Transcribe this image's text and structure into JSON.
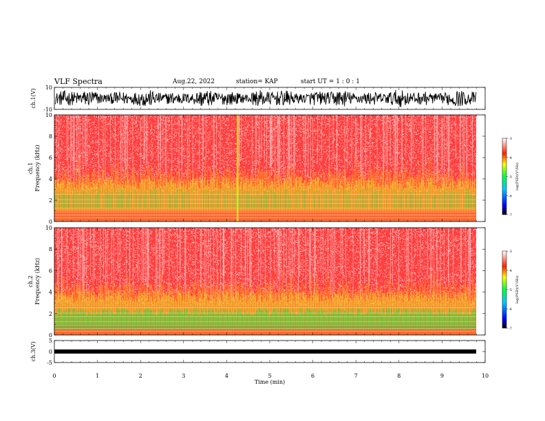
{
  "header": {
    "title": "VLF Spectra",
    "date": "Aug.22, 2022",
    "station": "station= KAP",
    "start": "start UT =  1 : 0  : 1"
  },
  "colors": {
    "spec_bg": "#ff4040",
    "spec_speckle": "#ffd0d0",
    "band_orange": "#ff9a1a",
    "band_yellow": "#e8e62a",
    "band_green": "#30e040",
    "band_cyan": "#30d0c0",
    "trace": "#000000"
  },
  "chart_data": [
    {
      "type": "line",
      "name": "ch1-waveform",
      "ylabel": "ch.1(V)",
      "ylim": [
        -10,
        10
      ],
      "yticks": [
        "10",
        "-10"
      ],
      "x_range": [
        0,
        9.83
      ],
      "approx_amplitude": [
        -8,
        8
      ]
    },
    {
      "type": "heatmap",
      "name": "ch1-spectrogram",
      "ylabel_lines": [
        "ch.1",
        "Frequency (kHz)"
      ],
      "ylim": [
        0,
        10
      ],
      "yticks": [
        "0",
        "2",
        "4",
        "6",
        "8",
        "10"
      ],
      "x_range": [
        0,
        9.83
      ],
      "colorbar": {
        "label": "log(PSD)(V²/Hz)",
        "range": [
          -7,
          -3
        ],
        "ticks": [
          "-3",
          "-4",
          "-5",
          "-6",
          "-7"
        ]
      },
      "features": {
        "strong_band_khz": [
          0.8,
          4.5
        ],
        "event_time_min": 4.25
      }
    },
    {
      "type": "heatmap",
      "name": "ch2-spectrogram",
      "ylabel_lines": [
        "ch.2",
        "Frequency (kHz)"
      ],
      "ylim": [
        0,
        10
      ],
      "yticks": [
        "0",
        "2",
        "4",
        "6",
        "8",
        "10"
      ],
      "x_range": [
        0,
        9.83
      ],
      "colorbar": {
        "label": "log(PSD)(V²/Hz)",
        "range": [
          -7,
          -3
        ],
        "ticks": [
          "-3",
          "-4",
          "-5",
          "-6",
          "-7"
        ]
      },
      "features": {
        "strong_band_khz": [
          0.5,
          4.5
        ]
      }
    },
    {
      "type": "line",
      "name": "ch3-waveform",
      "ylabel": "ch.3(V)",
      "ylim": [
        -5,
        5
      ],
      "yticks": [
        "5",
        "0",
        "-5"
      ],
      "x_range": [
        0,
        9.83
      ],
      "approx_value": 0
    }
  ],
  "xaxis": {
    "label": "Time (min)",
    "range": [
      0,
      10
    ],
    "ticks": [
      "0",
      "1",
      "2",
      "3",
      "4",
      "5",
      "6",
      "7",
      "8",
      "9",
      "10"
    ]
  }
}
